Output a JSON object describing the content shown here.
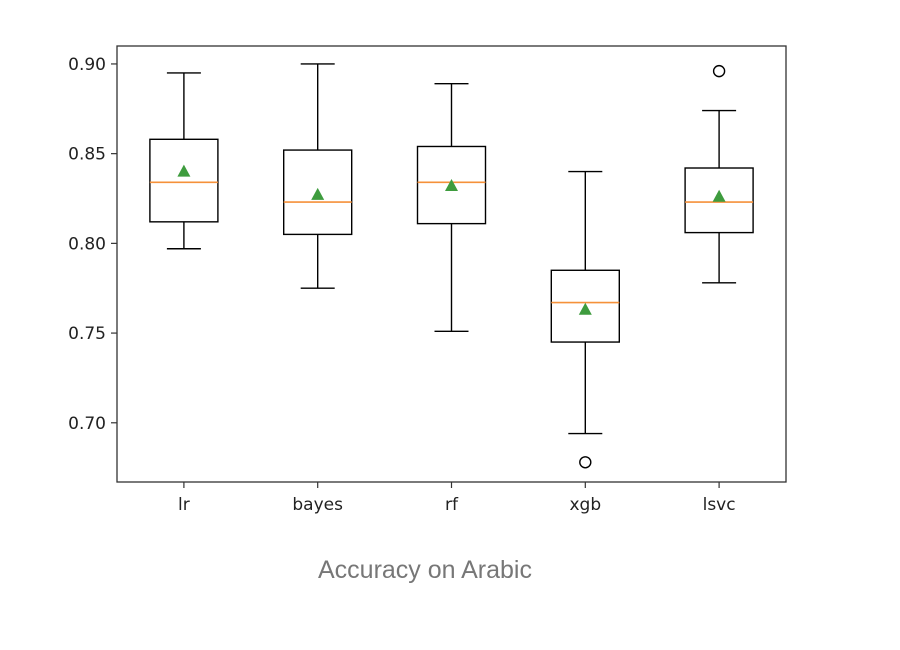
{
  "chart_data": {
    "type": "boxplot",
    "caption": "Accuracy on Arabic",
    "ylim": [
      0.667,
      0.91
    ],
    "yticks": [
      0.7,
      0.75,
      0.8,
      0.85,
      0.9
    ],
    "ytick_labels": [
      "0.70",
      "0.75",
      "0.80",
      "0.85",
      "0.90"
    ],
    "categories": [
      "lr",
      "bayes",
      "rf",
      "xgb",
      "lsvc"
    ],
    "boxes": [
      {
        "whisker_low": 0.797,
        "q1": 0.812,
        "median": 0.834,
        "q3": 0.858,
        "whisker_high": 0.895,
        "mean": 0.84,
        "outliers": []
      },
      {
        "whisker_low": 0.775,
        "q1": 0.805,
        "median": 0.823,
        "q3": 0.852,
        "whisker_high": 0.9,
        "mean": 0.827,
        "outliers": []
      },
      {
        "whisker_low": 0.751,
        "q1": 0.811,
        "median": 0.834,
        "q3": 0.854,
        "whisker_high": 0.889,
        "mean": 0.832,
        "outliers": []
      },
      {
        "whisker_low": 0.694,
        "q1": 0.745,
        "median": 0.767,
        "q3": 0.785,
        "whisker_high": 0.84,
        "mean": 0.763,
        "outliers": [
          0.678
        ]
      },
      {
        "whisker_low": 0.778,
        "q1": 0.806,
        "median": 0.823,
        "q3": 0.842,
        "whisker_high": 0.874,
        "mean": 0.826,
        "outliers": [
          0.896
        ]
      }
    ],
    "colors": {
      "median": "#f5913a",
      "mean": "#3e9c3e",
      "box": "#000000"
    },
    "grid": false
  }
}
